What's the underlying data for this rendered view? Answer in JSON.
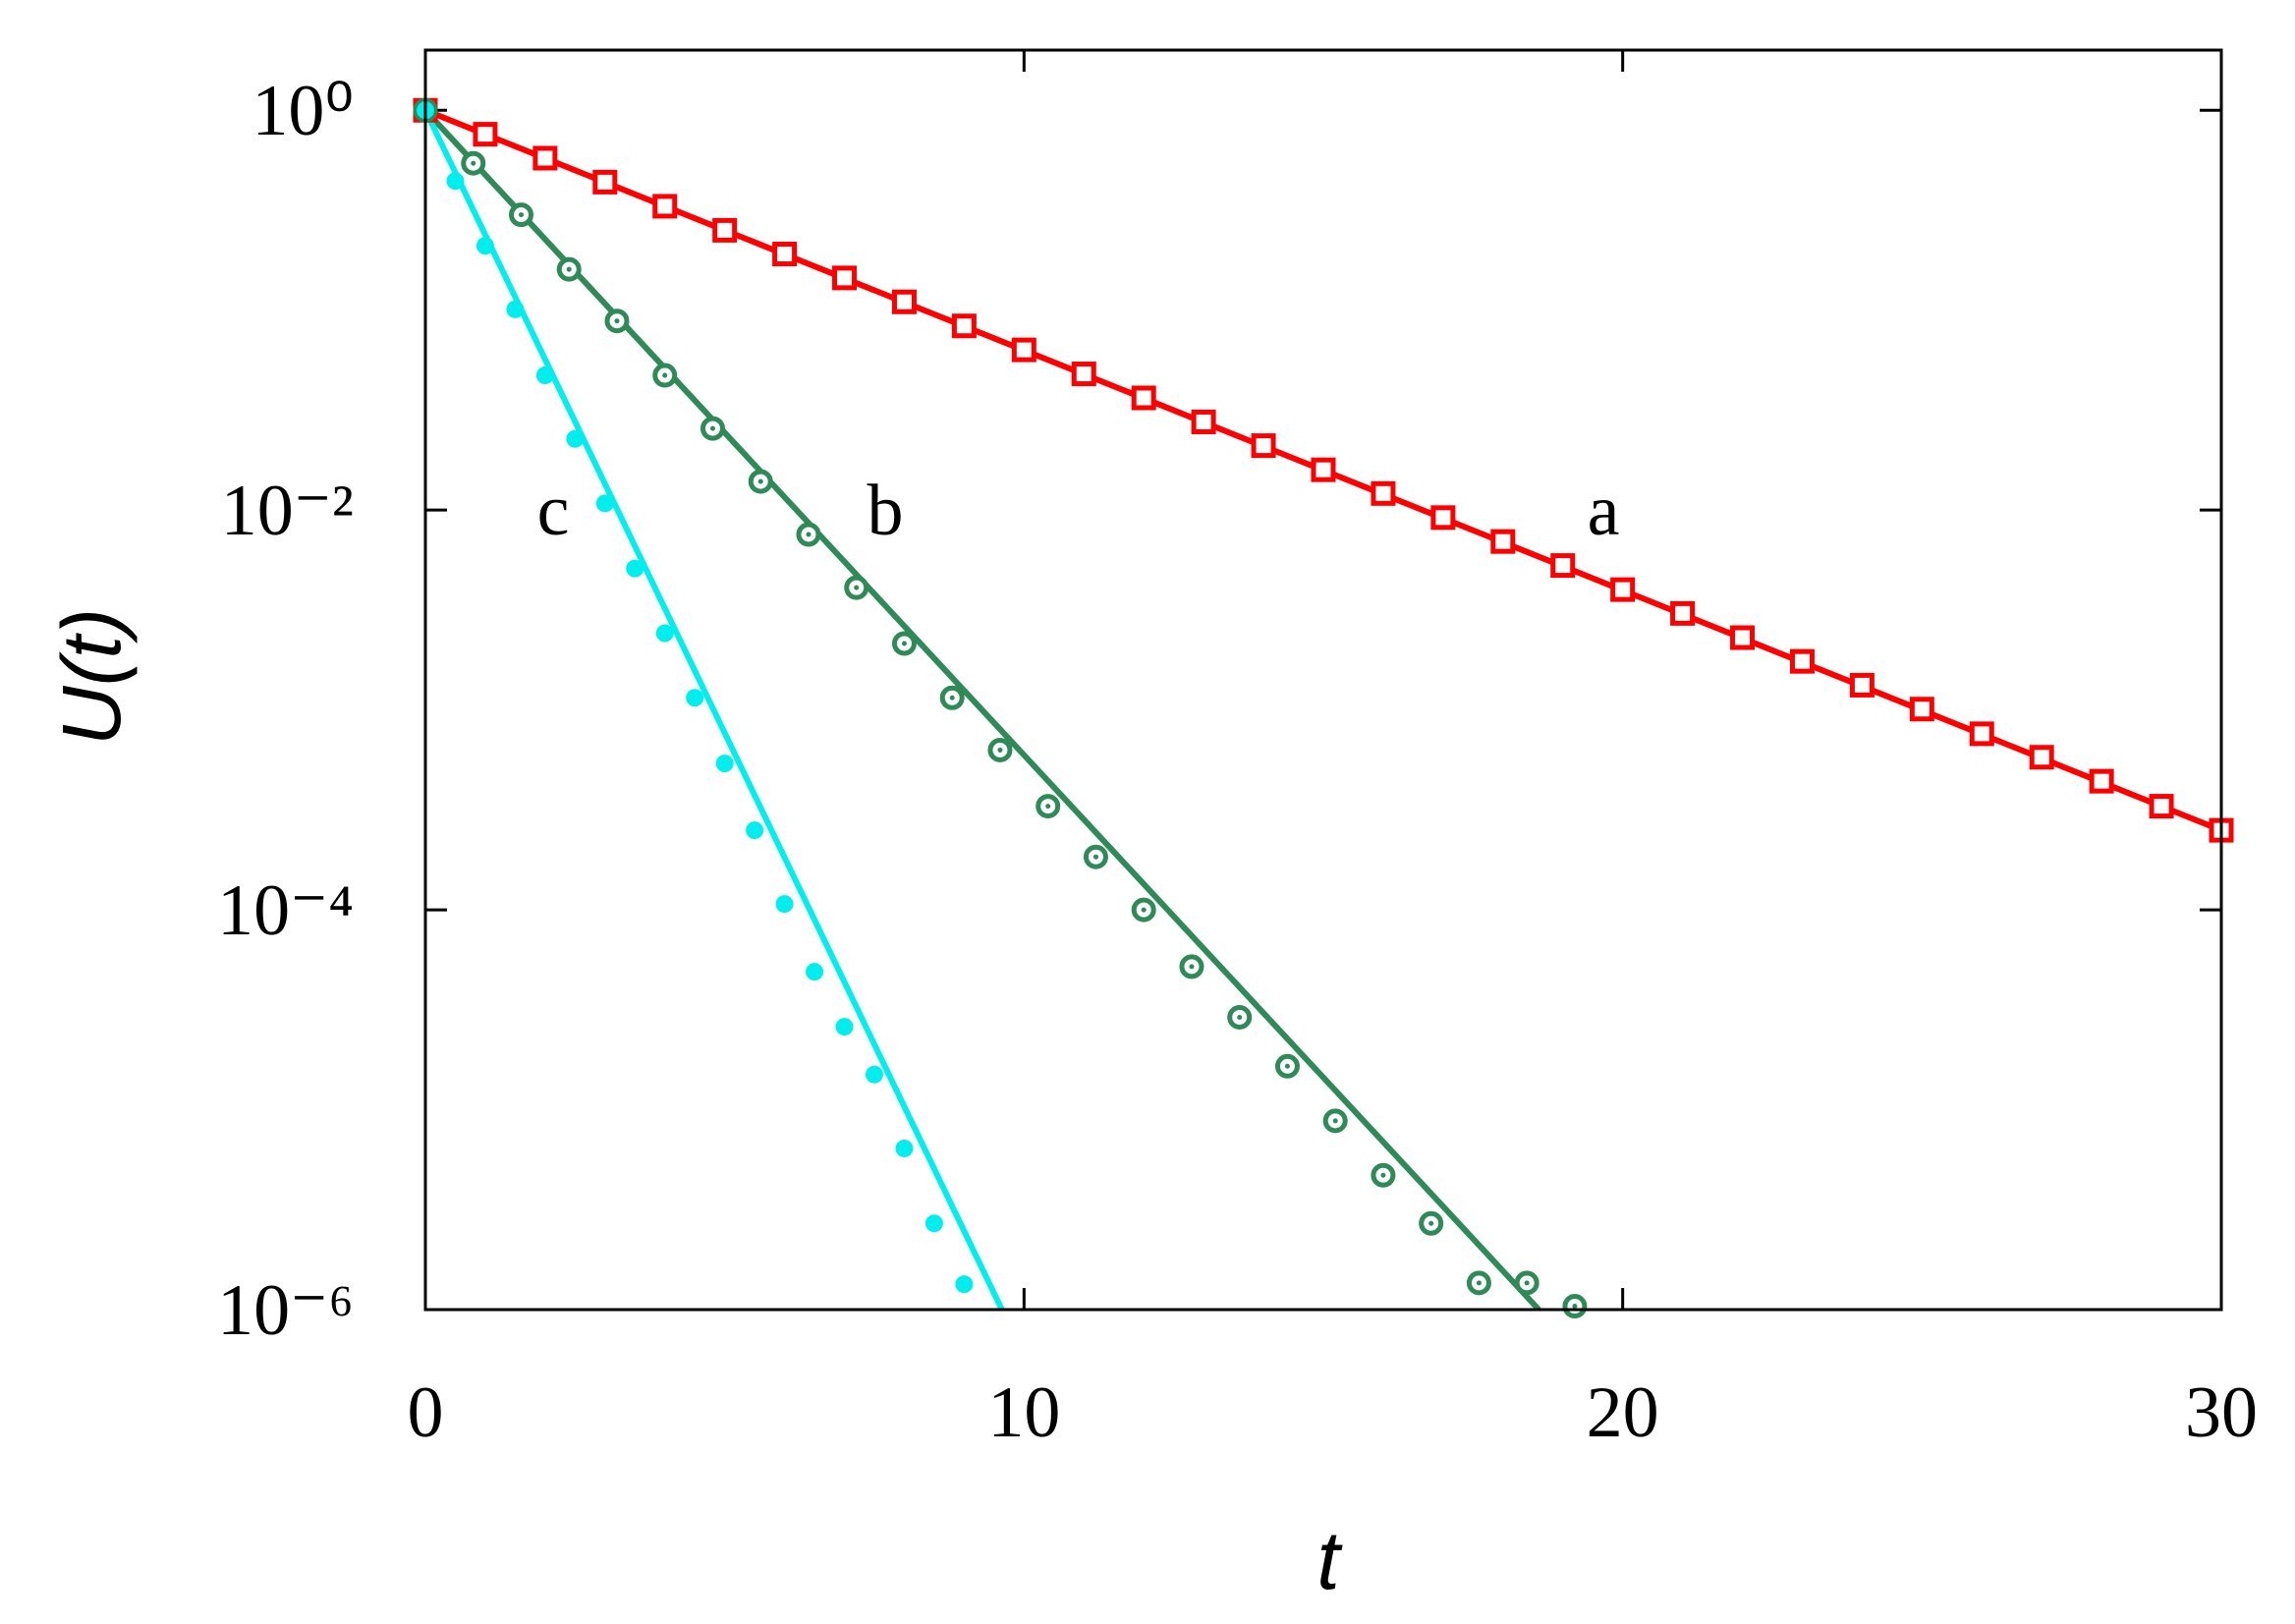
{
  "chart_data": {
    "type": "scatter",
    "xlabel": "t",
    "ylabel": "U(t)",
    "xlim": [
      0,
      30
    ],
    "xticks": [
      0,
      10,
      20,
      30
    ],
    "ylim": [
      1e-06,
      2
    ],
    "ylog": true,
    "yticks": [
      {
        "value": 1,
        "label": "10⁰"
      },
      {
        "value": 0.01,
        "label": "10⁻²"
      },
      {
        "value": 0.0001,
        "label": "10⁻⁴"
      },
      {
        "value": 1e-06,
        "label": "10⁻⁶"
      }
    ],
    "series": [
      {
        "name": "a",
        "color": "#ff0000",
        "marker": "square",
        "x": [
          0,
          1,
          2,
          3,
          4,
          5,
          6,
          7,
          8,
          9,
          10,
          11,
          12,
          13,
          14,
          15,
          16,
          17,
          18,
          19,
          20,
          21,
          22,
          23,
          24,
          25,
          26,
          27,
          28,
          29,
          30
        ],
        "values": [
          1,
          0.759,
          0.576,
          0.437,
          0.331,
          0.251,
          0.191,
          0.145,
          0.11,
          0.0834,
          0.0633,
          0.048,
          0.0364,
          0.0276,
          0.021,
          0.0159,
          0.0121,
          0.00917,
          0.00696,
          0.00528,
          0.004,
          0.00304,
          0.0023,
          0.00175,
          0.00133,
          0.00101,
          0.00076,
          0.00058,
          0.00044,
          0.00033,
          0.00025
        ]
      },
      {
        "name": "b",
        "color": "#2e8b57",
        "marker": "ring",
        "x": [
          0,
          0.8,
          1.6,
          2.4,
          3.2,
          4.0,
          4.8,
          5.6,
          6.4,
          7.2,
          8.0,
          8.8,
          9.6,
          10.4,
          11.2,
          12.0,
          12.8,
          13.6,
          14.4,
          15.2,
          16.0,
          16.8,
          17.6,
          18.4,
          19.2
        ],
        "values": [
          1,
          0.543,
          0.3,
          0.16,
          0.0883,
          0.0472,
          0.0256,
          0.0139,
          0.00755,
          0.00409,
          0.00215,
          0.00115,
          0.00063,
          0.00033,
          0.000184,
          0.0001,
          5.2e-05,
          2.9e-05,
          1.65e-05,
          8.8e-06,
          4.7e-06,
          2.7e-06,
          1.36e-06,
          1.36e-06,
          1.04e-06
        ]
      },
      {
        "name": "c",
        "color": "#00eeee",
        "marker": "dot",
        "x": [
          0,
          0.5,
          1,
          1.5,
          2,
          2.5,
          3,
          3.5,
          4,
          4.5,
          5,
          5.5,
          6,
          6.5,
          7,
          7.5,
          8,
          8.5,
          9
        ],
        "values": [
          1,
          0.443,
          0.21,
          0.101,
          0.0472,
          0.0227,
          0.0108,
          0.0051,
          0.00242,
          0.00115,
          0.00054,
          0.00025,
          0.000107,
          4.9e-05,
          2.6e-05,
          1.5e-05,
          6.4e-06,
          2.7e-06,
          1.34e-06
        ]
      }
    ],
    "lines": [
      {
        "color": "#ff0000",
        "x": [
          0,
          30
        ],
        "values": [
          1,
          0.00025
        ]
      },
      {
        "color": "#2e8b57",
        "x": [
          0,
          18.6
        ],
        "values": [
          1,
          1e-06
        ]
      },
      {
        "color": "#00eeee",
        "x": [
          0,
          9.63
        ],
        "values": [
          1,
          1e-06
        ]
      }
    ]
  }
}
